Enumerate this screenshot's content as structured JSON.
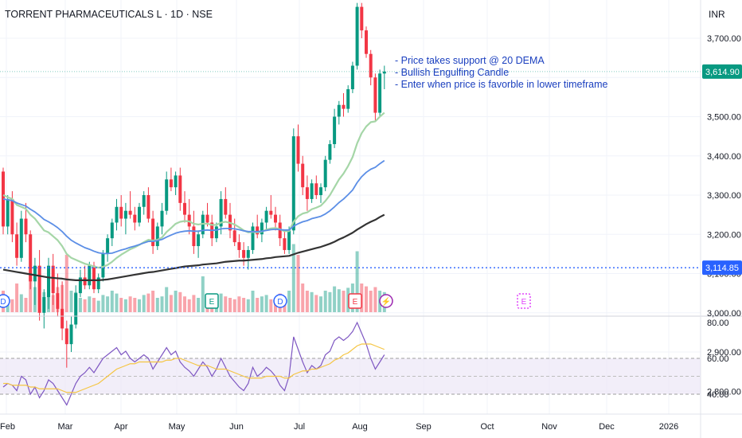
{
  "header": {
    "symbol_title": "TORRENT PHARMACEUTICALS L · 1D · NSE",
    "currency": "INR"
  },
  "annotations": [
    "- Price takes support @ 20 DEMA",
    "- Bullish Engulfing Candle",
    "- Enter when price is favorble in lower timeframe"
  ],
  "price_axis": {
    "ticks": [
      "3,700.00",
      "3,600.00",
      "3,500.00",
      "3,400.00",
      "3,300.00",
      "3,200.00",
      "3,100.00",
      "3,000.00",
      "2,900.00",
      "2,800.00"
    ],
    "tick_values": [
      3700,
      3600,
      3500,
      3400,
      3300,
      3200,
      3100,
      3000,
      2900,
      2800
    ],
    "last_price_label": "3,614.90",
    "last_price": 3614.9,
    "hline_label": "3,114.85",
    "hline_value": 3114.85
  },
  "rsi_axis": {
    "ticks": [
      "80.00",
      "60.00",
      "40.00"
    ],
    "tick_values": [
      80,
      60,
      40
    ]
  },
  "time_axis": {
    "labels": [
      "Feb",
      "Mar",
      "Apr",
      "May",
      "Jun",
      "Jul",
      "Aug",
      "Sep",
      "Oct",
      "Nov",
      "Dec",
      "2026"
    ]
  },
  "event_markers": [
    {
      "glyph": "D",
      "kind": "dividend",
      "color": "#2962ff"
    },
    {
      "glyph": "E",
      "kind": "earnings",
      "color": "#089981"
    },
    {
      "glyph": "D",
      "kind": "dividend",
      "color": "#2962ff"
    },
    {
      "glyph": "E",
      "kind": "earnings",
      "color": "#f23645"
    },
    {
      "glyph": "⚡",
      "kind": "split",
      "color": "#9c27b0"
    },
    {
      "glyph": "E",
      "kind": "earnings-upcoming",
      "color": "#e040fb"
    }
  ],
  "colors": {
    "up": "#089981",
    "down": "#f23645",
    "ema20": "#a5d6a7",
    "ema50": "#5b8ee6",
    "ema200": "#333333",
    "rsi": "#7e57c2",
    "rsi_ma": "#f5c542",
    "hline": "#2962ff",
    "annotation": "#1a3fbf",
    "last_price_badge": "#089981"
  },
  "chart_data": {
    "type": "candlestick",
    "x_range": [
      "Feb",
      "2026"
    ],
    "y_range": [
      2750,
      3800
    ],
    "candles_ohlc": [
      [
        3360,
        3370,
        3200,
        3220
      ],
      [
        3220,
        3300,
        3200,
        3290
      ],
      [
        3290,
        3310,
        3180,
        3200
      ],
      [
        3200,
        3230,
        3120,
        3140
      ],
      [
        3140,
        3260,
        3130,
        3240
      ],
      [
        3240,
        3280,
        3180,
        3200
      ],
      [
        3200,
        3210,
        3060,
        3080
      ],
      [
        3080,
        3140,
        3020,
        3120
      ],
      [
        3120,
        3160,
        2980,
        3000
      ],
      [
        3000,
        3060,
        2960,
        3040
      ],
      [
        3040,
        3140,
        3010,
        3120
      ],
      [
        3120,
        3150,
        3020,
        3050
      ],
      [
        3050,
        3100,
        2990,
        3010
      ],
      [
        3010,
        3080,
        2930,
        2960
      ],
      [
        2960,
        2980,
        2860,
        2920
      ],
      [
        2920,
        2990,
        2900,
        2970
      ],
      [
        2970,
        3070,
        2960,
        3050
      ],
      [
        3050,
        3110,
        3040,
        3090
      ],
      [
        3090,
        3120,
        3060,
        3070
      ],
      [
        3070,
        3130,
        3060,
        3120
      ],
      [
        3120,
        3130,
        3050,
        3060
      ],
      [
        3060,
        3100,
        3050,
        3090
      ],
      [
        3090,
        3160,
        3080,
        3150
      ],
      [
        3150,
        3200,
        3130,
        3190
      ],
      [
        3190,
        3240,
        3170,
        3230
      ],
      [
        3230,
        3290,
        3210,
        3270
      ],
      [
        3270,
        3300,
        3220,
        3240
      ],
      [
        3240,
        3280,
        3200,
        3260
      ],
      [
        3260,
        3310,
        3240,
        3250
      ],
      [
        3250,
        3270,
        3210,
        3230
      ],
      [
        3230,
        3280,
        3220,
        3270
      ],
      [
        3270,
        3310,
        3250,
        3300
      ],
      [
        3300,
        3320,
        3230,
        3240
      ],
      [
        3240,
        3260,
        3150,
        3170
      ],
      [
        3170,
        3230,
        3160,
        3220
      ],
      [
        3220,
        3280,
        3200,
        3260
      ],
      [
        3260,
        3360,
        3250,
        3340
      ],
      [
        3340,
        3370,
        3310,
        3320
      ],
      [
        3320,
        3360,
        3300,
        3350
      ],
      [
        3350,
        3370,
        3260,
        3280
      ],
      [
        3280,
        3310,
        3230,
        3250
      ],
      [
        3250,
        3290,
        3200,
        3220
      ],
      [
        3220,
        3260,
        3150,
        3170
      ],
      [
        3170,
        3210,
        3140,
        3200
      ],
      [
        3200,
        3260,
        3190,
        3250
      ],
      [
        3250,
        3280,
        3220,
        3230
      ],
      [
        3230,
        3250,
        3170,
        3190
      ],
      [
        3190,
        3230,
        3180,
        3220
      ],
      [
        3220,
        3310,
        3200,
        3290
      ],
      [
        3290,
        3320,
        3240,
        3250
      ],
      [
        3250,
        3280,
        3190,
        3210
      ],
      [
        3210,
        3240,
        3170,
        3180
      ],
      [
        3180,
        3200,
        3140,
        3160
      ],
      [
        3160,
        3180,
        3120,
        3140
      ],
      [
        3140,
        3170,
        3110,
        3160
      ],
      [
        3160,
        3230,
        3150,
        3220
      ],
      [
        3220,
        3250,
        3190,
        3200
      ],
      [
        3200,
        3240,
        3180,
        3230
      ],
      [
        3230,
        3270,
        3210,
        3260
      ],
      [
        3260,
        3300,
        3240,
        3250
      ],
      [
        3250,
        3270,
        3210,
        3230
      ],
      [
        3230,
        3250,
        3170,
        3190
      ],
      [
        3190,
        3210,
        3150,
        3160
      ],
      [
        3160,
        3220,
        3150,
        3210
      ],
      [
        3210,
        3470,
        3200,
        3450
      ],
      [
        3450,
        3480,
        3360,
        3380
      ],
      [
        3380,
        3400,
        3300,
        3320
      ],
      [
        3320,
        3350,
        3260,
        3290
      ],
      [
        3290,
        3340,
        3280,
        3330
      ],
      [
        3330,
        3350,
        3290,
        3300
      ],
      [
        3300,
        3330,
        3280,
        3320
      ],
      [
        3320,
        3400,
        3310,
        3390
      ],
      [
        3390,
        3440,
        3380,
        3430
      ],
      [
        3430,
        3520,
        3420,
        3500
      ],
      [
        3500,
        3540,
        3480,
        3530
      ],
      [
        3530,
        3560,
        3500,
        3520
      ],
      [
        3520,
        3580,
        3510,
        3570
      ],
      [
        3570,
        3640,
        3560,
        3630
      ],
      [
        3630,
        3790,
        3620,
        3780
      ],
      [
        3780,
        3790,
        3700,
        3720
      ],
      [
        3720,
        3730,
        3650,
        3660
      ],
      [
        3660,
        3670,
        3580,
        3600
      ],
      [
        3600,
        3610,
        3490,
        3510
      ],
      [
        3510,
        3620,
        3500,
        3610
      ],
      [
        3610,
        3630,
        3570,
        3615
      ]
    ],
    "ema20": [
      3300,
      3295,
      3290,
      3275,
      3270,
      3265,
      3250,
      3240,
      3225,
      3210,
      3205,
      3195,
      3185,
      3170,
      3150,
      3140,
      3135,
      3130,
      3125,
      3122,
      3118,
      3115,
      3117,
      3122,
      3130,
      3140,
      3148,
      3155,
      3162,
      3167,
      3173,
      3180,
      3186,
      3184,
      3186,
      3192,
      3206,
      3216,
      3227,
      3232,
      3234,
      3233,
      3227,
      3225,
      3227,
      3227,
      3224,
      3224,
      3230,
      3232,
      3229,
      3225,
      3218,
      3210,
      3205,
      3206,
      3205,
      3207,
      3212,
      3215,
      3216,
      3213,
      3208,
      3208,
      3232,
      3246,
      3253,
      3256,
      3264,
      3268,
      3273,
      3285,
      3300,
      3320,
      3340,
      3355,
      3374,
      3397,
      3432,
      3458,
      3475,
      3486,
      3488,
      3500,
      3510
    ],
    "ema50": [
      3290,
      3288,
      3286,
      3280,
      3276,
      3272,
      3264,
      3257,
      3248,
      3238,
      3232,
      3225,
      3217,
      3207,
      3195,
      3185,
      3178,
      3172,
      3166,
      3162,
      3157,
      3153,
      3151,
      3151,
      3152,
      3156,
      3160,
      3163,
      3167,
      3170,
      3174,
      3178,
      3182,
      3182,
      3184,
      3187,
      3193,
      3198,
      3203,
      3206,
      3208,
      3209,
      3208,
      3208,
      3210,
      3211,
      3210,
      3211,
      3214,
      3215,
      3215,
      3214,
      3212,
      3209,
      3207,
      3207,
      3207,
      3208,
      3210,
      3212,
      3213,
      3212,
      3211,
      3211,
      3221,
      3227,
      3232,
      3235,
      3240,
      3243,
      3246,
      3252,
      3260,
      3270,
      3281,
      3290,
      3301,
      3313,
      3332,
      3347,
      3358,
      3366,
      3371,
      3380,
      3388
    ],
    "ema200": [
      3110,
      3108,
      3106,
      3104,
      3102,
      3100,
      3098,
      3096,
      3094,
      3092,
      3090,
      3089,
      3088,
      3087,
      3085,
      3084,
      3083,
      3083,
      3083,
      3083,
      3083,
      3083,
      3084,
      3085,
      3087,
      3089,
      3091,
      3093,
      3095,
      3097,
      3099,
      3101,
      3103,
      3104,
      3106,
      3108,
      3110,
      3112,
      3114,
      3116,
      3118,
      3119,
      3120,
      3121,
      3123,
      3124,
      3125,
      3126,
      3128,
      3130,
      3131,
      3132,
      3133,
      3133,
      3134,
      3135,
      3136,
      3137,
      3139,
      3140,
      3142,
      3143,
      3144,
      3145,
      3149,
      3153,
      3156,
      3159,
      3162,
      3165,
      3168,
      3172,
      3176,
      3181,
      3187,
      3192,
      3198,
      3204,
      3212,
      3219,
      3226,
      3232,
      3237,
      3244,
      3250
    ],
    "volume": [
      30,
      22,
      18,
      40,
      25,
      20,
      55,
      35,
      60,
      28,
      30,
      24,
      35,
      38,
      80,
      30,
      28,
      20,
      18,
      22,
      20,
      16,
      24,
      22,
      30,
      26,
      20,
      18,
      22,
      20,
      18,
      24,
      26,
      30,
      20,
      22,
      35,
      24,
      30,
      28,
      22,
      18,
      24,
      20,
      50,
      22,
      24,
      18,
      26,
      22,
      20,
      18,
      22,
      20,
      18,
      30,
      20,
      22,
      24,
      18,
      20,
      26,
      22,
      30,
      95,
      80,
      40,
      30,
      28,
      24,
      22,
      30,
      28,
      36,
      32,
      30,
      34,
      40,
      85,
      40,
      36,
      30,
      35,
      30,
      28
    ],
    "rsi": [
      44,
      46,
      45,
      42,
      50,
      48,
      40,
      44,
      38,
      42,
      48,
      46,
      42,
      38,
      34,
      40,
      46,
      50,
      52,
      55,
      52,
      56,
      60,
      62,
      64,
      66,
      62,
      64,
      60,
      58,
      60,
      62,
      60,
      54,
      58,
      62,
      66,
      62,
      64,
      58,
      55,
      53,
      50,
      54,
      58,
      55,
      50,
      54,
      60,
      55,
      50,
      47,
      44,
      42,
      46,
      55,
      50,
      52,
      55,
      53,
      50,
      45,
      42,
      50,
      72,
      65,
      58,
      52,
      56,
      54,
      56,
      62,
      64,
      70,
      72,
      70,
      72,
      75,
      80,
      74,
      68,
      60,
      54,
      58,
      62
    ],
    "rsi_ma": [
      46,
      46,
      45,
      45,
      45,
      45,
      44,
      44,
      43,
      43,
      43,
      43,
      43,
      42,
      41,
      41,
      41,
      42,
      43,
      44,
      45,
      46,
      48,
      50,
      52,
      54,
      55,
      56,
      57,
      57,
      58,
      58,
      58,
      58,
      58,
      58,
      59,
      59,
      60,
      60,
      59,
      58,
      57,
      56,
      56,
      56,
      55,
      54,
      54,
      54,
      53,
      52,
      51,
      50,
      49,
      49,
      49,
      49,
      50,
      50,
      50,
      50,
      49,
      49,
      51,
      52,
      53,
      53,
      54,
      54,
      55,
      56,
      57,
      59,
      60,
      62,
      63,
      65,
      67,
      68,
      68,
      68,
      67,
      66,
      65
    ]
  }
}
